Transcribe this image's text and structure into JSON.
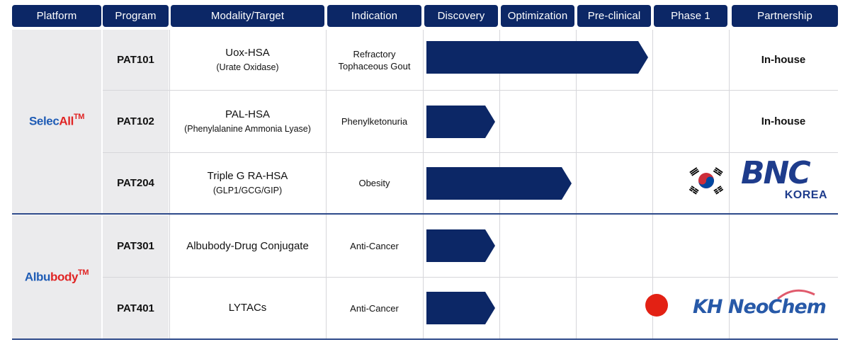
{
  "headers": {
    "platform": "Platform",
    "program": "Program",
    "modality": "Modality/Target",
    "indication": "Indication",
    "discovery": "Discovery",
    "optimization": "Optimization",
    "preclinical": "Pre-clinical",
    "phase1": "Phase 1",
    "partnership": "Partnership"
  },
  "platforms": [
    {
      "name_part1": "Selec",
      "name_part2": "All",
      "tm": "TM"
    },
    {
      "name_part1": "Albu",
      "name_part2": "body",
      "tm": "TM"
    }
  ],
  "stages": [
    "Discovery",
    "Optimization",
    "Pre-clinical",
    "Phase 1"
  ],
  "rows": [
    {
      "program": "PAT101",
      "modality": "Uox-HSA",
      "target": "(Urate Oxidase)",
      "indication_line1": "Refractory",
      "indication_line2": "Tophaceous Gout",
      "progress_stage": "Pre-clinical",
      "progress_fraction": 1.0,
      "partnership": "In-house"
    },
    {
      "program": "PAT102",
      "modality": "PAL-HSA",
      "target": "(Phenylalanine Ammonia Lyase)",
      "indication_line1": "Phenylketonuria",
      "indication_line2": "",
      "progress_stage": "Discovery",
      "progress_fraction": 1.0,
      "partnership": "In-house"
    },
    {
      "program": "PAT204",
      "modality": "Triple G RA-HSA",
      "target": "(GLP1/GCG/GIP)",
      "indication_line1": "Obesity",
      "indication_line2": "",
      "progress_stage": "Optimization",
      "progress_fraction": 1.0,
      "partnership": "",
      "partner_logo": "BNC",
      "partner_logo_sub": "KOREA",
      "partner_flag": "south-korea-flag-icon"
    },
    {
      "program": "PAT301",
      "modality": "Albubody-Drug Conjugate",
      "target": "",
      "indication_line1": "Anti-Cancer",
      "indication_line2": "",
      "progress_stage": "Discovery",
      "progress_fraction": 1.0,
      "partnership": ""
    },
    {
      "program": "PAT401",
      "modality": "LYTACs",
      "target": "",
      "indication_line1": "Anti-Cancer",
      "indication_line2": "",
      "progress_stage": "Discovery",
      "progress_fraction": 1.0,
      "partnership": "",
      "partner_logo": "KH NeoChem",
      "partner_flag": "japan-flag-icon"
    }
  ],
  "colors": {
    "header_bg": "#0c2766",
    "bar": "#0c2766",
    "platform_blue": "#1f5cb5",
    "platform_red": "#e02424",
    "bnc_blue": "#1e3c8c",
    "kh_blue": "#2759a8",
    "kh_red": "#e05a6c"
  }
}
